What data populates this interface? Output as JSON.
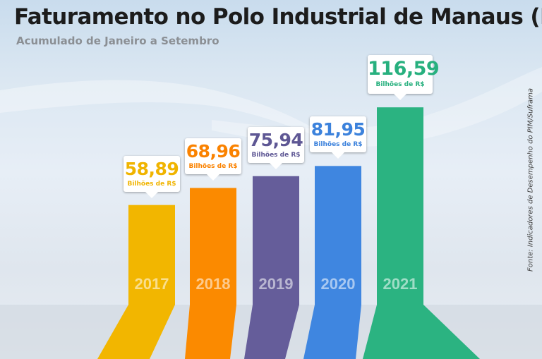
{
  "header": {
    "title": "Faturamento no Polo Industrial de Manaus (PIM)",
    "subtitle": "Acumulado de Janeiro a Setembro",
    "source": "Fonte: Indicadores de Desempenho do PIM/Suframa"
  },
  "chart_data": {
    "type": "bar",
    "title": "Faturamento no Polo Industrial de Manaus (PIM)",
    "subtitle": "Acumulado de Janeiro a Setembro",
    "categories": [
      "2017",
      "2018",
      "2019",
      "2020",
      "2021"
    ],
    "values": [
      58.89,
      68.96,
      75.94,
      81.95,
      116.59
    ],
    "value_labels": [
      "58,89",
      "68,96",
      "75,94",
      "81,95",
      "116,59"
    ],
    "unit_label": "Bilhões de R$",
    "colors": [
      "#f2b600",
      "#fb8a00",
      "#655d9a",
      "#3f86e0",
      "#2bb381"
    ],
    "label_colors": [
      "#f0b400",
      "#fa8200",
      "#5e5794",
      "#3c82dc",
      "#27b07e"
    ],
    "ylim": [
      0,
      125
    ],
    "grid": false,
    "legend": "none"
  }
}
